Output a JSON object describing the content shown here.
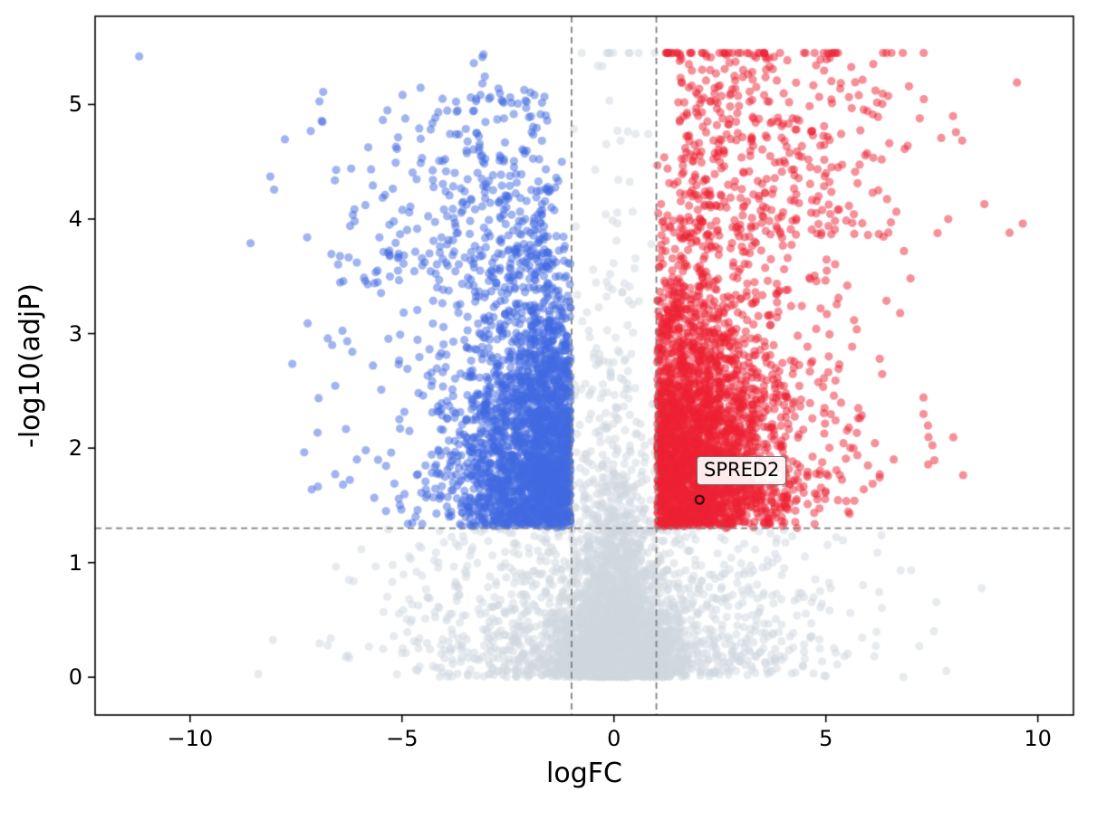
{
  "chart_data": {
    "type": "scatter",
    "subtype": "volcano-plot",
    "title": "",
    "xlabel": "logFC",
    "ylabel": "-log10(adjP)",
    "xlim": [
      -12.24,
      10.84
    ],
    "ylim": [
      -0.33,
      5.77
    ],
    "grid": false,
    "legend": null,
    "xticks": {
      "values": [
        -10,
        -5,
        0,
        5,
        10
      ],
      "labels": [
        "−10",
        "−5",
        "0",
        "5",
        "10"
      ]
    },
    "yticks": {
      "values": [
        0,
        1,
        2,
        3,
        4,
        5
      ],
      "labels": [
        "0",
        "1",
        "2",
        "3",
        "4",
        "5"
      ]
    },
    "thresholds": {
      "logfc_up": 1,
      "logfc_down": -1,
      "pval_line": 1.301
    },
    "threshold_line_style": {
      "color": "#7f7f7f",
      "dash": [
        7,
        4.5
      ],
      "width": 1.8
    },
    "colors": {
      "up": "#ee2233",
      "down": "#4169e1",
      "ns": "#cfd8e0",
      "alpha": 0.5
    },
    "marker": {
      "radius": 4.6
    },
    "cap_y": 5.45,
    "x_clip": [
      -11.3,
      9.9
    ],
    "seed": 42,
    "clusters": [
      {
        "name": "null-dense",
        "n": 2600,
        "x": {
          "dist": "normal",
          "mu": 0,
          "sigma": 0.6
        },
        "y": {
          "dist": "expo",
          "scale": 0.38
        }
      },
      {
        "name": "null-tall",
        "n": 500,
        "x": {
          "dist": "normal",
          "mu": 0,
          "sigma": 0.45
        },
        "y": {
          "dist": "expo",
          "scale": 1.4
        }
      },
      {
        "name": "null-wide",
        "n": 1700,
        "x": {
          "dist": "normal",
          "mu": 0,
          "sigma": 2.6
        },
        "y": {
          "dist": "expo",
          "scale": 0.5,
          "slope": 0.12
        }
      },
      {
        "name": "up-sig",
        "n": 2600,
        "sign": 1,
        "x": {
          "dist": "foldnormal",
          "min": 1.02,
          "sigma": 1.35
        },
        "y": {
          "dist": "band",
          "lo": 1.32,
          "spread": 1.05
        }
      },
      {
        "name": "down-sig",
        "n": 2200,
        "sign": -1,
        "x": {
          "dist": "foldnormal",
          "min": 1.02,
          "sigma": 1.25
        },
        "y": {
          "dist": "band",
          "lo": 1.32,
          "spread": 1.0
        }
      },
      {
        "name": "up-high",
        "n": 380,
        "sign": 1,
        "x": {
          "dist": "foldnormal",
          "min": 1.5,
          "sigma": 2.6
        },
        "y": {
          "dist": "uniform",
          "lo": 3.8,
          "hi": 5.45
        }
      },
      {
        "name": "down-high",
        "n": 270,
        "sign": -1,
        "x": {
          "dist": "foldnormal",
          "min": 1.5,
          "sigma": 2.4
        },
        "y": {
          "dist": "uniform",
          "lo": 3.4,
          "hi": 5.15
        }
      },
      {
        "name": "up-spread",
        "n": 260,
        "sign": 1,
        "x": {
          "dist": "foldnormal",
          "min": 1.3,
          "sigma": 2.6
        },
        "y": {
          "dist": "uniform",
          "lo": 1.4,
          "hi": 4.0
        }
      },
      {
        "name": "down-spread",
        "n": 200,
        "sign": -1,
        "x": {
          "dist": "foldnormal",
          "min": 1.3,
          "sigma": 2.5
        },
        "y": {
          "dist": "uniform",
          "lo": 1.4,
          "hi": 4.4
        }
      },
      {
        "name": "up-cap-row",
        "n": 40,
        "sign": 1,
        "x": {
          "dist": "foldnormal",
          "min": 1.2,
          "sigma": 2.9
        },
        "y": {
          "dist": "const",
          "value": 5.45
        }
      },
      {
        "name": "down-cap",
        "n": 4,
        "sign": -1,
        "x": {
          "dist": "foldnormal",
          "min": 3.0,
          "sigma": 0.6
        },
        "y": {
          "dist": "uniform",
          "lo": 5.1,
          "hi": 5.45
        }
      }
    ],
    "outliers": [
      {
        "x": -11.2,
        "y": 5.42,
        "class": "down"
      }
    ],
    "annotation": {
      "label": "SPRED2",
      "x": 2.02,
      "y": 1.55,
      "label_x": 1.95,
      "label_y": 1.93,
      "marker": "open-circle"
    }
  }
}
